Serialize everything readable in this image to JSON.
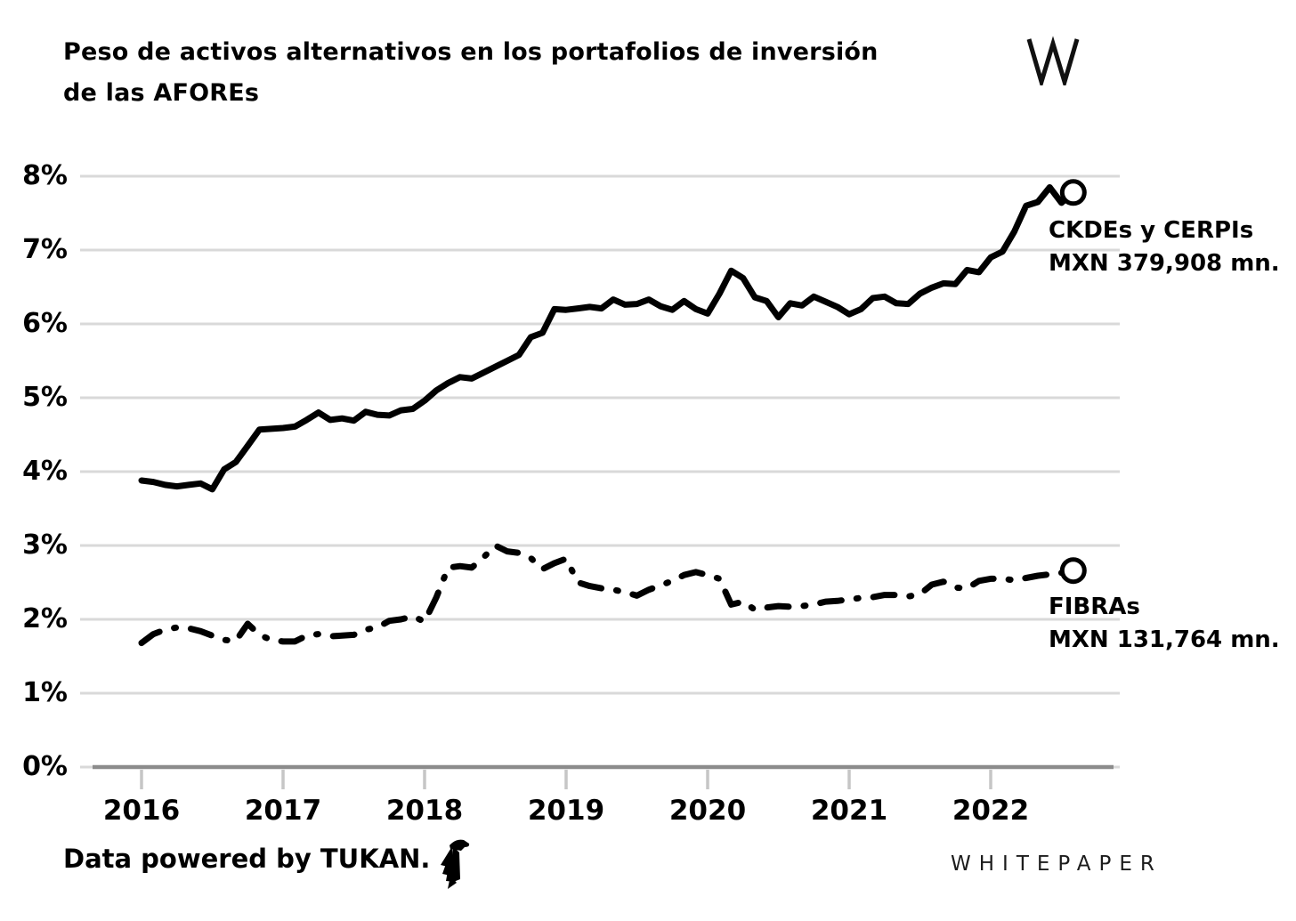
{
  "title": {
    "line1": "Peso de activos alternativos en los portafolios de inversión",
    "line2": "de las AFOREs"
  },
  "logo": {
    "letter": "W"
  },
  "footer": {
    "credit": "Data powered by TUKAN.",
    "brand": "WHITEPAPER"
  },
  "colors": {
    "line": "#000000",
    "gridline": "#d9d9d9",
    "axis": "#8c8c8c",
    "tick": "#c6c6c6",
    "text": "#000000",
    "background": "#ffffff"
  },
  "chart_data": {
    "type": "line",
    "title": "Peso de activos alternativos en los portafolios de inversión de las AFOREs",
    "frequency": "monthly",
    "x_start": "2016-01",
    "x_end": "2022-08",
    "x_tick_labels": [
      "2016",
      "2017",
      "2018",
      "2019",
      "2020",
      "2021",
      "2022"
    ],
    "y_tick_labels": [
      "0%",
      "1%",
      "2%",
      "3%",
      "4%",
      "5%",
      "6%",
      "7%",
      "8%"
    ],
    "ylim": [
      0,
      8
    ],
    "grid": true,
    "legend_position": "end-of-line-annotations",
    "series": [
      {
        "name": "CKDEs y CERPIs",
        "style": "solid",
        "end_marker": "open-circle",
        "annotation": {
          "line1": "CKDEs y CERPIs",
          "line2": "MXN 379,908 mn."
        },
        "values": [
          3.88,
          3.86,
          3.82,
          3.8,
          3.82,
          3.84,
          3.76,
          4.03,
          4.13,
          4.35,
          4.57,
          4.58,
          4.59,
          4.61,
          4.7,
          4.8,
          4.7,
          4.72,
          4.69,
          4.81,
          4.77,
          4.76,
          4.83,
          4.85,
          4.96,
          5.1,
          5.2,
          5.28,
          5.26,
          5.34,
          5.42,
          5.5,
          5.58,
          5.82,
          5.88,
          6.2,
          6.19,
          6.21,
          6.23,
          6.21,
          6.33,
          6.26,
          6.27,
          6.33,
          6.24,
          6.19,
          6.31,
          6.2,
          6.14,
          6.41,
          6.72,
          6.62,
          6.36,
          6.31,
          6.09,
          6.28,
          6.25,
          6.37,
          6.3,
          6.23,
          6.13,
          6.2,
          6.35,
          6.37,
          6.28,
          6.27,
          6.41,
          6.49,
          6.55,
          6.54,
          6.73,
          6.7,
          6.9,
          6.98,
          7.25,
          7.6,
          7.65,
          7.85,
          7.64,
          7.78
        ]
      },
      {
        "name": "FIBRAs",
        "style": "dash-dot",
        "end_marker": "open-circle",
        "annotation": {
          "line1": "FIBRAs",
          "line2": "MXN 131,764 mn."
        },
        "values": [
          1.68,
          1.8,
          1.86,
          1.89,
          1.88,
          1.84,
          1.78,
          1.72,
          1.71,
          1.94,
          1.79,
          1.72,
          1.7,
          1.7,
          1.78,
          1.8,
          1.77,
          1.78,
          1.79,
          1.86,
          1.89,
          1.98,
          2.0,
          2.04,
          1.97,
          2.3,
          2.7,
          2.72,
          2.7,
          2.84,
          3.0,
          2.92,
          2.9,
          2.83,
          2.68,
          2.76,
          2.82,
          2.5,
          2.45,
          2.42,
          2.4,
          2.37,
          2.32,
          2.4,
          2.46,
          2.52,
          2.6,
          2.64,
          2.6,
          2.55,
          2.2,
          2.24,
          2.13,
          2.16,
          2.18,
          2.17,
          2.18,
          2.2,
          2.24,
          2.25,
          2.27,
          2.29,
          2.3,
          2.33,
          2.33,
          2.31,
          2.34,
          2.47,
          2.51,
          2.43,
          2.42,
          2.52,
          2.55,
          2.55,
          2.53,
          2.56,
          2.59,
          2.61,
          2.63,
          2.66
        ]
      }
    ]
  }
}
